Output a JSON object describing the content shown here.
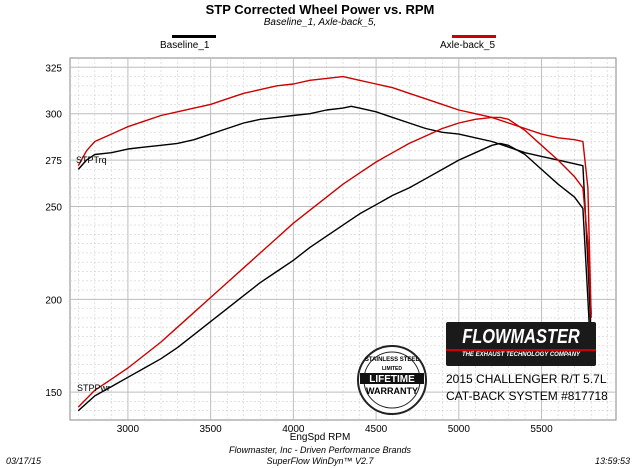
{
  "chart_data": {
    "type": "line",
    "title": "STP Corrected Wheel Power vs. RPM",
    "subtitle": "Baseline_1, Axle-back_5,",
    "xlabel": "EngSpd RPM",
    "ylabel": "",
    "xlim": [
      2650,
      5950
    ],
    "ylim": [
      135,
      330
    ],
    "xticks": [
      3000,
      3500,
      4000,
      4500,
      5000,
      5500
    ],
    "yticks": [
      150,
      200,
      250,
      275,
      300,
      325
    ],
    "grid": true,
    "legend_placement": "top",
    "colors": {
      "baseline": "#000000",
      "axleback": "#cc0000",
      "grid": "#d0d0d0"
    },
    "series": [
      {
        "name": "Baseline_1",
        "measure": "STPTrq",
        "x": [
          2700,
          2750,
          2800,
          2900,
          3000,
          3100,
          3200,
          3300,
          3400,
          3500,
          3600,
          3700,
          3800,
          3900,
          4000,
          4100,
          4200,
          4300,
          4350,
          4400,
          4500,
          4600,
          4700,
          4800,
          4900,
          5000,
          5100,
          5200,
          5300,
          5400,
          5500,
          5600,
          5700,
          5750,
          5780,
          5800
        ],
        "values": [
          270,
          275,
          278,
          279,
          281,
          282,
          283,
          284,
          286,
          289,
          292,
          295,
          297,
          298,
          299,
          300,
          302,
          303,
          304,
          303,
          301,
          298,
          295,
          292,
          290,
          289,
          287,
          285,
          282,
          279,
          277,
          275,
          273,
          272,
          220,
          180
        ]
      },
      {
        "name": "Axle-back_5",
        "measure": "STPTrq",
        "x": [
          2700,
          2750,
          2800,
          2900,
          3000,
          3100,
          3200,
          3300,
          3400,
          3500,
          3600,
          3700,
          3800,
          3900,
          4000,
          4100,
          4200,
          4300,
          4400,
          4500,
          4600,
          4700,
          4800,
          4900,
          5000,
          5100,
          5200,
          5300,
          5400,
          5500,
          5600,
          5700,
          5750,
          5780,
          5800
        ],
        "values": [
          272,
          280,
          285,
          289,
          293,
          296,
          299,
          301,
          303,
          305,
          308,
          311,
          313,
          315,
          316,
          318,
          319,
          320,
          318,
          316,
          314,
          311,
          308,
          305,
          302,
          300,
          298,
          295,
          292,
          289,
          287,
          286,
          285,
          260,
          190
        ]
      },
      {
        "name": "Baseline_1",
        "measure": "STPPwr",
        "x": [
          2700,
          2800,
          2900,
          3000,
          3100,
          3200,
          3300,
          3400,
          3500,
          3600,
          3700,
          3800,
          3900,
          4000,
          4100,
          4200,
          4300,
          4400,
          4500,
          4600,
          4700,
          4800,
          4900,
          5000,
          5100,
          5200,
          5250,
          5300,
          5400,
          5500,
          5600,
          5700,
          5750,
          5780,
          5800
        ],
        "values": [
          140,
          148,
          153,
          158,
          163,
          168,
          174,
          181,
          188,
          195,
          202,
          209,
          215,
          221,
          228,
          234,
          240,
          246,
          251,
          256,
          260,
          265,
          270,
          275,
          279,
          283,
          284,
          283,
          278,
          270,
          262,
          255,
          249,
          200,
          165
        ]
      },
      {
        "name": "Axle-back_5",
        "measure": "STPPwr",
        "x": [
          2700,
          2800,
          2900,
          3000,
          3100,
          3200,
          3300,
          3400,
          3500,
          3600,
          3700,
          3800,
          3900,
          4000,
          4100,
          4200,
          4300,
          4400,
          4500,
          4600,
          4700,
          4800,
          4900,
          5000,
          5100,
          5200,
          5250,
          5300,
          5400,
          5500,
          5600,
          5700,
          5750,
          5780,
          5800
        ],
        "values": [
          142,
          151,
          157,
          163,
          170,
          177,
          185,
          193,
          201,
          209,
          217,
          225,
          233,
          241,
          248,
          255,
          262,
          268,
          274,
          279,
          284,
          288,
          292,
          295,
          297,
          298,
          298,
          297,
          291,
          283,
          275,
          266,
          260,
          230,
          192
        ]
      }
    ],
    "series_labels": {
      "torque": "STPTrq",
      "power": "STPPwr"
    }
  },
  "footer": {
    "line1": "Flowmaster, Inc - Driven Performance Brands",
    "line2": "SuperFlow WinDyn™ V2.7",
    "date": "03/17/15",
    "time": "13:59:53"
  },
  "brand": {
    "name": "FLOWMASTER",
    "tagline": "THE EXHAUST TECHNOLOGY COMPANY",
    "vehicle": "2015 CHALLENGER R/T 5.7L",
    "system": "CAT-BACK SYSTEM #817718",
    "badge_top": "STAINLESS STEEL",
    "badge_mid": "LIFETIME",
    "badge_bottom": "WARRANTY",
    "badge_small": "LIMITED"
  }
}
